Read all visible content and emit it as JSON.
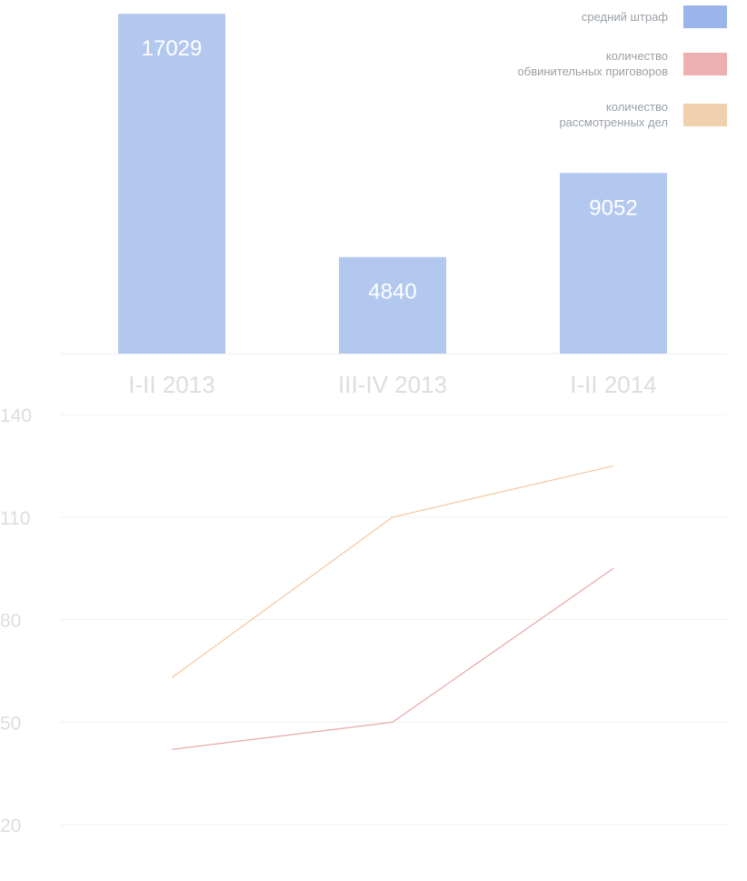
{
  "chart_data": [
    {
      "type": "bar",
      "categories": [
        "I-II 2013",
        "III-IV 2013",
        "I-II 2014"
      ],
      "series": [
        {
          "name": "средний штраф",
          "values": [
            17029,
            4840,
            9052
          ],
          "color": "#b3c8ef"
        }
      ],
      "data_labels": [
        "17029",
        "4840",
        "9052"
      ],
      "ylim": [
        0,
        17400
      ],
      "grid": false
    },
    {
      "type": "line",
      "categories": [
        "I-II 2013",
        "III-IV 2013",
        "I-II 2014"
      ],
      "series": [
        {
          "name": "количество обвинительных приговоров",
          "values": [
            42,
            50,
            95
          ],
          "color": "#e9a6a6"
        },
        {
          "name": "количество рассмотренных дел",
          "values": [
            63,
            110,
            125
          ],
          "color": "#f3c7a0"
        }
      ],
      "yticks": [
        20,
        50,
        80,
        110,
        140
      ],
      "ylim": [
        20,
        140
      ],
      "grid": true
    }
  ],
  "legend": {
    "placement": "top-right",
    "items": [
      {
        "label": "средний штраф",
        "color": "#9bb5ea"
      },
      {
        "label": "количество\nобвинительных приговоров",
        "color": "#edb0b0"
      },
      {
        "label": "количество\nрассмотренных дел",
        "color": "#f1d0ad"
      }
    ]
  }
}
